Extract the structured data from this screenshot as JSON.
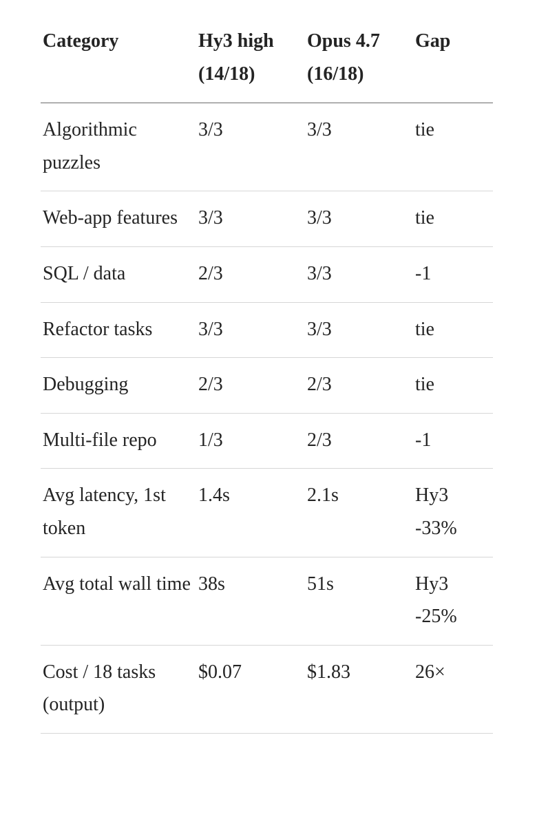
{
  "table": {
    "headers": [
      "Category",
      "Hy3 high (14/18)",
      "Opus 4.7 (16/18)",
      "Gap"
    ],
    "rows": [
      [
        "Algorithmic puzzles",
        "3/3",
        "3/3",
        "tie"
      ],
      [
        "Web-app features",
        "3/3",
        "3/3",
        "tie"
      ],
      [
        "SQL / data",
        "2/3",
        "3/3",
        "-1"
      ],
      [
        "Refactor tasks",
        "3/3",
        "3/3",
        "tie"
      ],
      [
        "Debugging",
        "2/3",
        "2/3",
        "tie"
      ],
      [
        "Multi-file repo",
        "1/3",
        "2/3",
        "-1"
      ],
      [
        "Avg latency, 1st token",
        "1.4s",
        "2.1s",
        "Hy3 -33%"
      ],
      [
        "Avg total wall time",
        "38s",
        "51s",
        "Hy3 -25%"
      ],
      [
        "Cost / 18 tasks (output)",
        "$0.07",
        "$1.83",
        "26×"
      ]
    ]
  }
}
